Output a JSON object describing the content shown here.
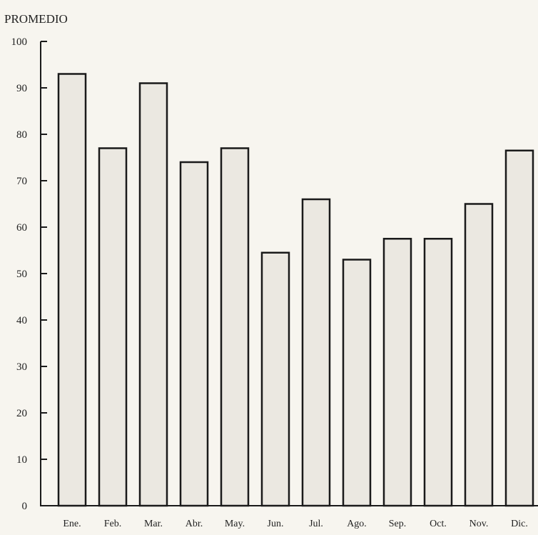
{
  "chart_data": {
    "type": "bar",
    "ylabel": "PROMEDIO",
    "xlabel": "",
    "ylim": [
      0,
      100
    ],
    "yticks": [
      0,
      10,
      20,
      30,
      40,
      50,
      60,
      70,
      80,
      90,
      100
    ],
    "categories": [
      "Ene.",
      "Feb.",
      "Mar.",
      "Abr.",
      "May.",
      "Jun.",
      "Jul.",
      "Ago.",
      "Sep.",
      "Oct.",
      "Nov.",
      "Dic."
    ],
    "values": [
      93,
      77,
      91,
      74,
      77,
      54.5,
      66,
      53,
      57.5,
      57.5,
      65,
      76.5
    ],
    "grid": false,
    "colors": {
      "bar_fill": "#ebe8e1",
      "bar_stroke": "#1a1a1a",
      "axis": "#1a1a1a",
      "background": "#f7f5ef"
    }
  }
}
